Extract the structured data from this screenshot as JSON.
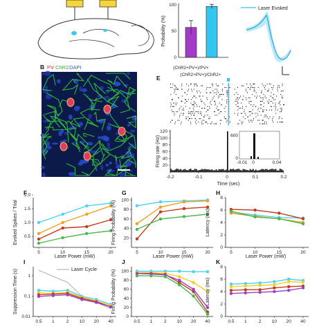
{
  "panel_labels": [
    "B",
    "E",
    "F",
    "G",
    "H",
    "I",
    "J",
    "K"
  ],
  "panel_c": {
    "ylabel": "Probability (%)",
    "categories": [
      "(ChR2+PV+)/PV+",
      "(ChR2+PV+)/ChR2+"
    ],
    "values": [
      57,
      97
    ],
    "errors": [
      13,
      4
    ],
    "yticks": [
      "0",
      "50",
      "100"
    ],
    "bar_colors": [
      "#a23cc8",
      "#33c6ee"
    ]
  },
  "panel_d": {
    "legend": "Laser Evoked"
  },
  "panel_b": {
    "pv": "PV",
    "chr2": "ChR2",
    "dapi": "DAPI"
  },
  "panel_e": {
    "ylabel": "Firing rate (Hz)",
    "xlabel": "Time (sec)",
    "xticks": [
      "-0.2",
      "-0.1",
      "0",
      "0.1",
      "0.2"
    ],
    "yticks": [
      "20",
      "40",
      "60",
      "80",
      "100",
      "120"
    ],
    "inset_yticks": [
      "0",
      "600"
    ],
    "inset_xticks": [
      "-0.01",
      "0",
      "0.04"
    ]
  },
  "series_colors": [
    "#4dd0f2",
    "#f0a020",
    "#c33a1e",
    "#49b84a"
  ],
  "row1_xticks": [
    "5",
    "10",
    "15",
    "20"
  ],
  "row1_xlabel": "Laser Power (mW)",
  "row2_xticks": [
    "0.5",
    "1",
    "2",
    "10",
    "20",
    "40"
  ],
  "panel_f": {
    "ylabel": "Evoked Spikes / Trial",
    "yticks": [
      "0.5",
      "1.0",
      "1.5",
      "2.0"
    ]
  },
  "panel_g": {
    "ylabel": "Firing Probability (%)",
    "yticks": [
      "20",
      "40",
      "60",
      "80",
      "100"
    ]
  },
  "panel_h": {
    "ylabel": "Latency (ms)",
    "yticks": [
      "0",
      "2",
      "4",
      "6",
      "8"
    ]
  },
  "panel_i": {
    "ylabel": "Suppression Time (s)",
    "yticks": [
      "0.01",
      "0.1",
      "1"
    ],
    "legend": "Laser Cycle"
  },
  "panel_j": {
    "ylabel": "Firing Probability (%)",
    "yticks": [
      "0",
      "20",
      "40",
      "60",
      "80",
      "100"
    ]
  },
  "panel_k": {
    "ylabel": "Latency (ms)",
    "yticks": [
      "0",
      "2",
      "4",
      "6",
      "8"
    ]
  },
  "chart_data": [
    {
      "type": "line",
      "panel": "F",
      "x": [
        5,
        10,
        15,
        20
      ],
      "series": [
        {
          "values": [
            1.0,
            1.3,
            1.6,
            1.7
          ]
        },
        {
          "values": [
            0.6,
            1.0,
            1.3,
            1.6
          ]
        },
        {
          "values": [
            0.4,
            0.8,
            0.85,
            1.1
          ]
        },
        {
          "values": [
            0.25,
            0.45,
            0.6,
            0.7
          ]
        }
      ],
      "ylim": [
        0.1,
        1.9
      ]
    },
    {
      "type": "line",
      "panel": "G",
      "x": [
        5,
        10,
        15,
        20
      ],
      "series": [
        {
          "values": [
            88,
            96,
            98,
            100
          ]
        },
        {
          "values": [
            50,
            85,
            96,
            98
          ]
        },
        {
          "values": [
            18,
            75,
            82,
            85
          ]
        },
        {
          "values": [
            38,
            60,
            65,
            70
          ]
        }
      ],
      "ylim": [
        0,
        105
      ]
    },
    {
      "type": "line",
      "panel": "H",
      "x": [
        5,
        10,
        15,
        20
      ],
      "series": [
        {
          "values": [
            5.7,
            5.2,
            4.8,
            4.7
          ]
        },
        {
          "values": [
            5.5,
            5.0,
            4.6,
            4.0
          ]
        },
        {
          "values": [
            6.1,
            6.0,
            5.5,
            4.6
          ]
        },
        {
          "values": [
            5.8,
            4.9,
            4.6,
            3.8
          ]
        }
      ],
      "ylim": [
        0,
        8
      ]
    },
    {
      "type": "line",
      "panel": "I",
      "x": [
        0.5,
        1,
        2,
        10,
        20,
        40
      ],
      "series": [
        {
          "name": "Laser Cycle",
          "values": [
            2.0,
            1.0,
            0.5,
            0.1,
            0.05,
            0.025
          ]
        },
        {
          "values": [
            0.2,
            0.18,
            0.2,
            0.1,
            0.07,
            0.04
          ]
        },
        {
          "values": [
            0.15,
            0.14,
            0.16,
            0.09,
            0.06,
            0.035
          ]
        },
        {
          "values": [
            0.12,
            0.13,
            0.14,
            0.08,
            0.055,
            0.03
          ]
        },
        {
          "values": [
            0.1,
            0.11,
            0.12,
            0.07,
            0.05,
            0.03
          ]
        }
      ],
      "ylim": [
        0.01,
        3
      ]
    },
    {
      "type": "line",
      "panel": "J",
      "x": [
        0.5,
        1,
        2,
        10,
        20,
        40
      ],
      "series": [
        {
          "values": [
            100,
            100,
            100,
            100,
            99,
            99
          ]
        },
        {
          "values": [
            97,
            97,
            96,
            88,
            75,
            55
          ]
        },
        {
          "values": [
            95,
            95,
            93,
            75,
            55,
            10
          ]
        },
        {
          "values": [
            95,
            94,
            92,
            80,
            60,
            20
          ]
        },
        {
          "values": [
            90,
            90,
            88,
            70,
            45,
            5
          ]
        }
      ],
      "ylim": [
        0,
        110
      ]
    },
    {
      "type": "line",
      "panel": "K",
      "x": [
        0.5,
        1,
        2,
        10,
        20,
        40
      ],
      "series": [
        {
          "values": [
            5.2,
            5.3,
            5.4,
            5.6,
            6.0,
            5.8
          ]
        },
        {
          "values": [
            4.8,
            4.9,
            5.0,
            5.1,
            5.6,
            5.5
          ]
        },
        {
          "values": [
            4.2,
            4.3,
            4.3,
            4.6,
            4.8,
            4.9
          ]
        },
        {
          "values": [
            3.7,
            3.8,
            3.9,
            4.0,
            4.2,
            4.6
          ]
        }
      ],
      "ylim": [
        0,
        8
      ]
    }
  ]
}
